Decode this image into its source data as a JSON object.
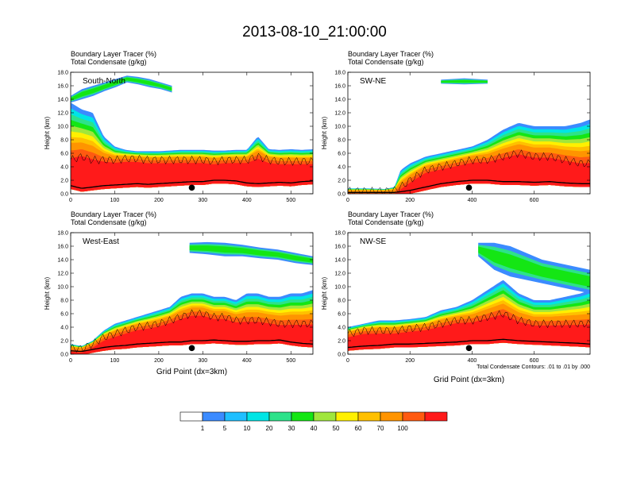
{
  "title": "2013-08-10_21:00:00",
  "chart_data": [
    {
      "type": "area",
      "panel": "South-North",
      "header_line1": "Boundary Layer Tracer   (%)",
      "header_line2": "Total Condensate   (g/kg)",
      "ylabel": "Height (km)",
      "xlabel": "",
      "xlim": [
        0,
        550
      ],
      "ylim": [
        0,
        18
      ],
      "xticks": [
        0,
        100,
        200,
        300,
        400,
        500
      ],
      "yticks": [
        0,
        2,
        4,
        6,
        8,
        10,
        12,
        14,
        16,
        18
      ],
      "marker_x": 275,
      "x": [
        0,
        25,
        50,
        75,
        100,
        125,
        150,
        175,
        200,
        225,
        250,
        275,
        300,
        325,
        350,
        375,
        400,
        425,
        450,
        475,
        500,
        525,
        550
      ],
      "terrain": [
        1.2,
        0.8,
        1.0,
        1.2,
        1.3,
        1.4,
        1.5,
        1.4,
        1.5,
        1.6,
        1.7,
        1.8,
        1.8,
        2.0,
        2.0,
        1.9,
        1.6,
        1.5,
        1.6,
        1.7,
        1.6,
        1.8,
        1.9
      ],
      "tracer_top": [
        13.5,
        12.5,
        12.0,
        8.5,
        7.0,
        6.5,
        6.3,
        6.3,
        6.3,
        6.4,
        6.5,
        6.5,
        6.5,
        6.4,
        6.4,
        6.5,
        6.5,
        8.5,
        6.6,
        6.5,
        6.6,
        6.5,
        6.6
      ],
      "core_top": [
        5.0,
        5.5,
        5.0,
        5.0,
        5.0,
        5.2,
        5.2,
        5.0,
        5.0,
        5.0,
        5.0,
        5.0,
        5.0,
        4.8,
        5.0,
        5.0,
        5.0,
        5.5,
        5.0,
        4.8,
        4.8,
        4.8,
        4.8
      ],
      "upper_cloud": {
        "x_start": 0,
        "x_end": 230,
        "base": [
          13.5,
          14.0,
          14.5,
          15.2,
          15.8,
          16.5,
          16.2,
          15.8,
          15.5,
          15.0
        ],
        "top": [
          14.5,
          15.5,
          16.0,
          16.5,
          17.0,
          17.5,
          17.3,
          17.0,
          16.5,
          16.0
        ]
      }
    },
    {
      "type": "area",
      "panel": "SW-NE",
      "header_line1": "Boundary Layer Tracer   (%)",
      "header_line2": "Total Condensate   (g/kg)",
      "ylabel": "Height (km)",
      "xlabel": "",
      "xlim": [
        0,
        780
      ],
      "ylim": [
        0,
        18
      ],
      "xticks": [
        0,
        200,
        400,
        600
      ],
      "yticks": [
        0,
        2,
        4,
        6,
        8,
        10,
        12,
        14,
        16,
        18
      ],
      "marker_x": 390,
      "x": [
        0,
        60,
        120,
        150,
        170,
        200,
        250,
        300,
        350,
        400,
        450,
        500,
        550,
        600,
        650,
        700,
        750,
        780
      ],
      "terrain": [
        0.2,
        0.2,
        0.2,
        0.2,
        0.3,
        0.5,
        1.0,
        1.5,
        1.8,
        2.0,
        2.0,
        1.8,
        1.8,
        1.7,
        1.8,
        1.6,
        1.5,
        1.5
      ],
      "tracer_top": [
        0.8,
        0.8,
        0.7,
        1.0,
        3.5,
        4.5,
        5.5,
        6.0,
        6.5,
        7.0,
        8.0,
        9.5,
        10.5,
        10.0,
        10.0,
        10.0,
        10.5,
        11.0
      ],
      "core_top": [
        0.4,
        0.4,
        0.4,
        0.5,
        1.0,
        2.0,
        3.5,
        4.0,
        4.5,
        5.0,
        5.0,
        5.5,
        6.0,
        5.5,
        5.5,
        5.0,
        4.5,
        4.5
      ],
      "upper_cloud": {
        "x_start": 300,
        "x_end": 450,
        "base": [
          16.3,
          16.2,
          16.3
        ],
        "top": [
          16.9,
          17.1,
          16.9
        ]
      }
    },
    {
      "type": "area",
      "panel": "West-East",
      "header_line1": "Boundary Layer Tracer   (%)",
      "header_line2": "Total Condensate   (g/kg)",
      "ylabel": "Height (km)",
      "xlabel": "Grid Point (dx=3km)",
      "xlim": [
        0,
        550
      ],
      "ylim": [
        0,
        18
      ],
      "xticks": [
        0,
        100,
        200,
        300,
        400,
        500
      ],
      "yticks": [
        0,
        2,
        4,
        6,
        8,
        10,
        12,
        14,
        16,
        18
      ],
      "marker_x": 275,
      "x": [
        0,
        25,
        50,
        75,
        100,
        125,
        150,
        175,
        200,
        225,
        250,
        275,
        300,
        325,
        350,
        375,
        400,
        425,
        450,
        475,
        500,
        525,
        550
      ],
      "terrain": [
        0.5,
        0.4,
        0.7,
        1.0,
        1.2,
        1.3,
        1.5,
        1.6,
        1.7,
        1.8,
        1.8,
        2.0,
        2.0,
        2.1,
        2.0,
        1.9,
        1.9,
        2.0,
        2.0,
        2.1,
        1.8,
        1.6,
        1.5
      ],
      "tracer_top": [
        1.5,
        1.2,
        2.0,
        3.5,
        4.5,
        5.0,
        5.5,
        6.0,
        6.5,
        7.0,
        8.5,
        9.0,
        9.0,
        8.5,
        8.5,
        8.0,
        9.0,
        9.0,
        8.5,
        8.5,
        9.0,
        9.0,
        9.5
      ],
      "core_top": [
        0.9,
        0.8,
        1.5,
        2.5,
        3.0,
        3.5,
        4.0,
        4.2,
        4.5,
        5.0,
        5.5,
        6.0,
        6.0,
        5.5,
        5.5,
        5.0,
        5.0,
        5.0,
        4.8,
        4.5,
        4.5,
        4.5,
        4.5
      ],
      "upper_cloud": {
        "x_start": 270,
        "x_end": 550,
        "base": [
          15.0,
          14.8,
          14.5,
          14.5,
          14.2,
          14.0,
          13.5,
          13.2
        ],
        "top": [
          16.5,
          16.6,
          16.5,
          16.2,
          15.8,
          15.5,
          15.0,
          14.5
        ]
      }
    },
    {
      "type": "area",
      "panel": "NW-SE",
      "header_line1": "Boundary Layer Tracer   (%)",
      "header_line2": "Total Condensate   (g/kg)",
      "ylabel": "Height (km)",
      "xlabel": "Grid Point (dx=3km)",
      "note": "Total Condensate Contours: .01 to .01 by .000",
      "xlim": [
        0,
        780
      ],
      "ylim": [
        0,
        18
      ],
      "xticks": [
        0,
        200,
        400,
        600
      ],
      "yticks": [
        0,
        2,
        4,
        6,
        8,
        10,
        12,
        14,
        16,
        18
      ],
      "marker_x": 390,
      "x": [
        0,
        50,
        100,
        150,
        200,
        250,
        300,
        350,
        400,
        450,
        500,
        550,
        600,
        650,
        700,
        750,
        780
      ],
      "terrain": [
        1.0,
        1.2,
        1.3,
        1.5,
        1.5,
        1.6,
        1.7,
        1.8,
        2.0,
        2.0,
        2.2,
        2.0,
        1.9,
        1.8,
        1.7,
        1.6,
        1.5
      ],
      "tracer_top": [
        4.0,
        4.5,
        5.0,
        5.0,
        5.2,
        5.5,
        6.5,
        7.0,
        8.0,
        9.5,
        11.0,
        9.0,
        8.0,
        8.0,
        8.5,
        9.0,
        9.5
      ],
      "core_top": [
        3.0,
        3.5,
        3.5,
        3.5,
        3.8,
        4.0,
        4.5,
        5.0,
        5.0,
        5.5,
        6.0,
        5.0,
        4.5,
        4.5,
        4.5,
        4.5,
        4.5
      ],
      "upper_cloud": {
        "x_start": 420,
        "x_end": 780,
        "base": [
          14.5,
          12.5,
          11.5,
          11.0,
          10.5,
          10.0,
          9.5,
          9.0
        ],
        "top": [
          16.5,
          16.5,
          16.0,
          15.0,
          14.0,
          13.5,
          13.0,
          12.5
        ]
      }
    }
  ],
  "colorbar": {
    "levels": [
      "1",
      "5",
      "10",
      "20",
      "30",
      "40",
      "50",
      "60",
      "70",
      "100"
    ],
    "colors": [
      "#ffffff",
      "#3b8bff",
      "#1fbfff",
      "#00e5e5",
      "#2de28a",
      "#14e614",
      "#a0e63c",
      "#fff000",
      "#ffc000",
      "#ff9400",
      "#ff5a10",
      "#ff1a1a"
    ]
  }
}
